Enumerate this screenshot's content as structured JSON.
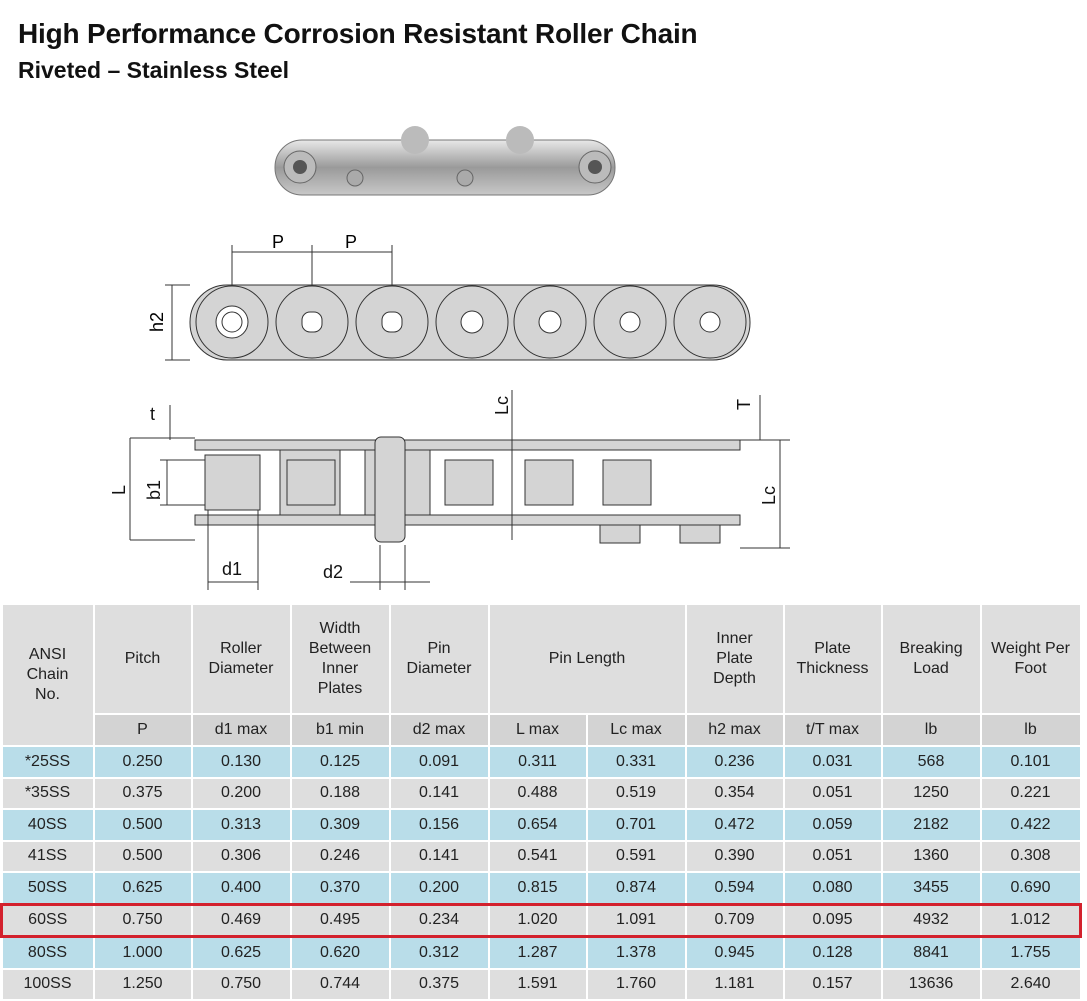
{
  "header": {
    "title": "High Performance Corrosion Resistant Roller Chain",
    "subtitle": "Riveted – Stainless Steel"
  },
  "diagram": {
    "side_labels": {
      "p1": "P",
      "p2": "P",
      "h2": "h2"
    },
    "top_labels": {
      "t": "t",
      "L": "L",
      "b1": "b1",
      "d1": "d1",
      "d2": "d2",
      "Lc_top": "Lc",
      "T": "T",
      "Lc_side": "Lc"
    }
  },
  "table": {
    "headers": [
      "ANSI Chain No.",
      "Pitch",
      "Roller Diameter",
      "Width Between Inner Plates",
      "Pin Diameter",
      "Pin Length",
      "Inner Plate Depth",
      "Plate Thickness",
      "Breaking Load",
      "Weight Per Foot"
    ],
    "subheaders": [
      "P",
      "d1 max",
      "b1 min",
      "d2 max",
      "L max",
      "Lc max",
      "h2 max",
      "t/T max",
      "lb",
      "lb"
    ],
    "rows": [
      [
        "*25SS",
        "0.250",
        "0.130",
        "0.125",
        "0.091",
        "0.311",
        "0.331",
        "0.236",
        "0.031",
        "568",
        "0.101"
      ],
      [
        "*35SS",
        "0.375",
        "0.200",
        "0.188",
        "0.141",
        "0.488",
        "0.519",
        "0.354",
        "0.051",
        "1250",
        "0.221"
      ],
      [
        "40SS",
        "0.500",
        "0.313",
        "0.309",
        "0.156",
        "0.654",
        "0.701",
        "0.472",
        "0.059",
        "2182",
        "0.422"
      ],
      [
        "41SS",
        "0.500",
        "0.306",
        "0.246",
        "0.141",
        "0.541",
        "0.591",
        "0.390",
        "0.051",
        "1360",
        "0.308"
      ],
      [
        "50SS",
        "0.625",
        "0.400",
        "0.370",
        "0.200",
        "0.815",
        "0.874",
        "0.594",
        "0.080",
        "3455",
        "0.690"
      ],
      [
        "60SS",
        "0.750",
        "0.469",
        "0.495",
        "0.234",
        "1.020",
        "1.091",
        "0.709",
        "0.095",
        "4932",
        "1.012"
      ],
      [
        "80SS",
        "1.000",
        "0.625",
        "0.620",
        "0.312",
        "1.287",
        "1.378",
        "0.945",
        "0.128",
        "8841",
        "1.755"
      ],
      [
        "100SS",
        "1.250",
        "0.750",
        "0.744",
        "0.375",
        "1.591",
        "1.760",
        "1.181",
        "0.157",
        "13636",
        "2.640"
      ]
    ],
    "highlighted_row": "60SS",
    "colors": {
      "blue_row": "#b9dde9",
      "gray_row": "#dedede",
      "highlight": "#d3212d"
    }
  }
}
